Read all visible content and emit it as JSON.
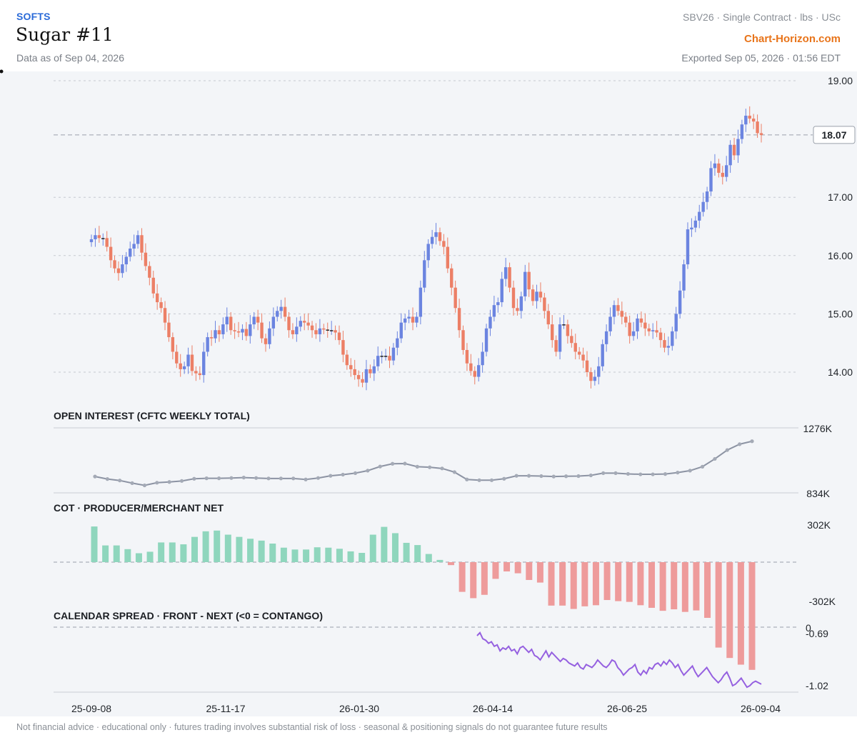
{
  "header": {
    "category": "SOFTS",
    "title": "Sugar #11",
    "as_of": "Data as of Sep 04, 2026",
    "meta": "SBV26 · Single Contract · lbs · USc",
    "brand": "Chart-Horizon.com",
    "exported": "Exported Sep 05, 2026 · 01:56 EDT"
  },
  "footer": {
    "disclaimer": "Not financial advice · educational only · futures trading involves substantial risk of loss · seasonal & positioning signals do not guarantee future results"
  },
  "colors": {
    "up": "#6b84e0",
    "down": "#ec7f66",
    "oi_line": "#8c93a3",
    "cot_pos": "#8fd6bd",
    "cot_neg": "#ee9b9b",
    "spread": "#9560e0"
  },
  "chart_data": [
    {
      "type": "candlestick",
      "pane": "price",
      "y_ticks": [
        "19.00",
        "17.00",
        "16.00",
        "15.00",
        "14.00"
      ],
      "ylim": [
        13.7,
        19.05
      ],
      "last_value": "18.07",
      "x_tick_labels": [
        "25-09-08",
        "25-11-17",
        "26-01-30",
        "26-04-14",
        "26-06-25",
        "26-09-04"
      ],
      "close_path": [
        16.28,
        16.35,
        16.3,
        16.3,
        16.15,
        15.92,
        15.78,
        15.7,
        15.85,
        15.98,
        16.12,
        16.2,
        16.35,
        16.05,
        15.82,
        15.62,
        15.35,
        15.2,
        15.1,
        14.85,
        14.6,
        14.35,
        14.15,
        14.05,
        14.1,
        14.3,
        14.02,
        13.98,
        13.95,
        14.35,
        14.6,
        14.58,
        14.72,
        14.65,
        14.82,
        14.95,
        14.72,
        14.7,
        14.68,
        14.74,
        14.62,
        14.82,
        14.95,
        14.85,
        14.58,
        14.48,
        14.75,
        14.95,
        15.05,
        15.12,
        14.95,
        14.72,
        14.65,
        14.78,
        14.88,
        14.85,
        14.8,
        14.72,
        14.65,
        14.75,
        14.73,
        14.72,
        14.72,
        14.68,
        14.55,
        14.3,
        14.12,
        14.05,
        13.95,
        13.88,
        13.82,
        14.05,
        13.98,
        14.1,
        14.28,
        14.28,
        14.28,
        14.2,
        14.42,
        14.58,
        14.85,
        14.92,
        14.95,
        14.85,
        14.95,
        15.45,
        15.92,
        16.2,
        16.32,
        16.4,
        16.25,
        16.15,
        15.78,
        15.45,
        15.1,
        14.72,
        14.38,
        14.15,
        14.02,
        13.92,
        14.12,
        14.35,
        14.75,
        14.95,
        15.15,
        15.2,
        15.6,
        15.8,
        15.45,
        15.1,
        15.05,
        15.3,
        15.72,
        15.42,
        15.22,
        15.38,
        15.28,
        15.05,
        14.82,
        14.55,
        14.35,
        14.82,
        14.82,
        14.62,
        14.5,
        14.35,
        14.3,
        14.2,
        14.0,
        13.85,
        13.92,
        14.1,
        14.48,
        14.7,
        14.95,
        15.15,
        15.05,
        14.95,
        14.85,
        14.62,
        14.7,
        14.92,
        14.85,
        14.75,
        14.7,
        14.72,
        14.68,
        14.55,
        14.42,
        14.45,
        14.7,
        15.0,
        15.4,
        15.85,
        16.45,
        16.48,
        16.6,
        16.75,
        16.92,
        17.1,
        17.5,
        17.58,
        17.42,
        17.35,
        17.55,
        17.9,
        17.72,
        18.0,
        18.25,
        18.4,
        18.35,
        18.3,
        18.1,
        18.07
      ]
    },
    {
      "type": "line",
      "pane": "open_interest",
      "title": "OPEN INTEREST (CFTC WEEKLY TOTAL)",
      "y_ticks": [
        "1276K",
        "834K"
      ],
      "ylim": [
        834,
        1276
      ],
      "values": [
        945,
        928,
        918,
        900,
        885,
        903,
        908,
        915,
        930,
        933,
        933,
        935,
        938,
        935,
        932,
        932,
        932,
        925,
        935,
        950,
        958,
        968,
        985,
        1013,
        1032,
        1033,
        1012,
        1008,
        1000,
        975,
        925,
        920,
        920,
        930,
        950,
        950,
        948,
        945,
        947,
        948,
        953,
        968,
        968,
        963,
        960,
        960,
        962,
        972,
        985,
        1012,
        1065,
        1125,
        1165,
        1185
      ]
    },
    {
      "type": "bar",
      "pane": "cot",
      "title": "COT · PRODUCER/MERCHANT NET",
      "y_ticks": [
        "302K",
        "-302K"
      ],
      "ylim": [
        -302,
        302
      ],
      "values": [
        96,
        45,
        45,
        35,
        24,
        28,
        53,
        53,
        48,
        68,
        83,
        85,
        74,
        68,
        63,
        58,
        50,
        39,
        34,
        34,
        40,
        39,
        36,
        29,
        25,
        74,
        95,
        78,
        52,
        46,
        22,
        6,
        -8,
        -80,
        -97,
        -88,
        -45,
        -25,
        -30,
        -48,
        -55,
        -117,
        -117,
        -126,
        -119,
        -116,
        -102,
        -105,
        -107,
        -116,
        -123,
        -131,
        -127,
        -134,
        -130,
        -150,
        -230,
        -258,
        -276,
        -290
      ]
    },
    {
      "type": "line",
      "pane": "spread",
      "title": "CALENDAR SPREAD · FRONT - NEXT (<0 = CONTANGO)",
      "y_ticks": [
        "0",
        "-0.69",
        "-1.02"
      ],
      "ylim": [
        -1.12,
        0
      ],
      "values": [
        -0.69,
        -0.67,
        -0.71,
        -0.72,
        -0.74,
        -0.73,
        -0.76,
        -0.75,
        -0.79,
        -0.77,
        -0.78,
        -0.76,
        -0.79,
        -0.78,
        -0.81,
        -0.77,
        -0.76,
        -0.78,
        -0.8,
        -0.78,
        -0.82,
        -0.83,
        -0.85,
        -0.82,
        -0.79,
        -0.83,
        -0.8,
        -0.82,
        -0.84,
        -0.86,
        -0.84,
        -0.85,
        -0.87,
        -0.88,
        -0.89,
        -0.87,
        -0.9,
        -0.91,
        -0.88,
        -0.89,
        -0.9,
        -0.88,
        -0.85,
        -0.87,
        -0.89,
        -0.9,
        -0.88,
        -0.85,
        -0.86,
        -0.9,
        -0.92,
        -0.95,
        -0.93,
        -0.91,
        -0.9,
        -0.88,
        -0.93,
        -0.95,
        -0.92,
        -0.94,
        -0.9,
        -0.91,
        -0.88,
        -0.87,
        -0.89,
        -0.86,
        -0.88,
        -0.85,
        -0.87,
        -0.9,
        -0.88,
        -0.92,
        -0.95,
        -0.93,
        -0.91,
        -0.89,
        -0.93,
        -0.96,
        -0.94,
        -0.92,
        -0.9,
        -0.93,
        -0.96,
        -0.98,
        -1.0,
        -0.98,
        -0.95,
        -0.93,
        -0.97,
        -1.02,
        -1.01,
        -0.99,
        -0.97,
        -1.0,
        -1.03,
        -1.02,
        -1.0,
        -0.99,
        -1.0,
        -1.01
      ]
    }
  ]
}
